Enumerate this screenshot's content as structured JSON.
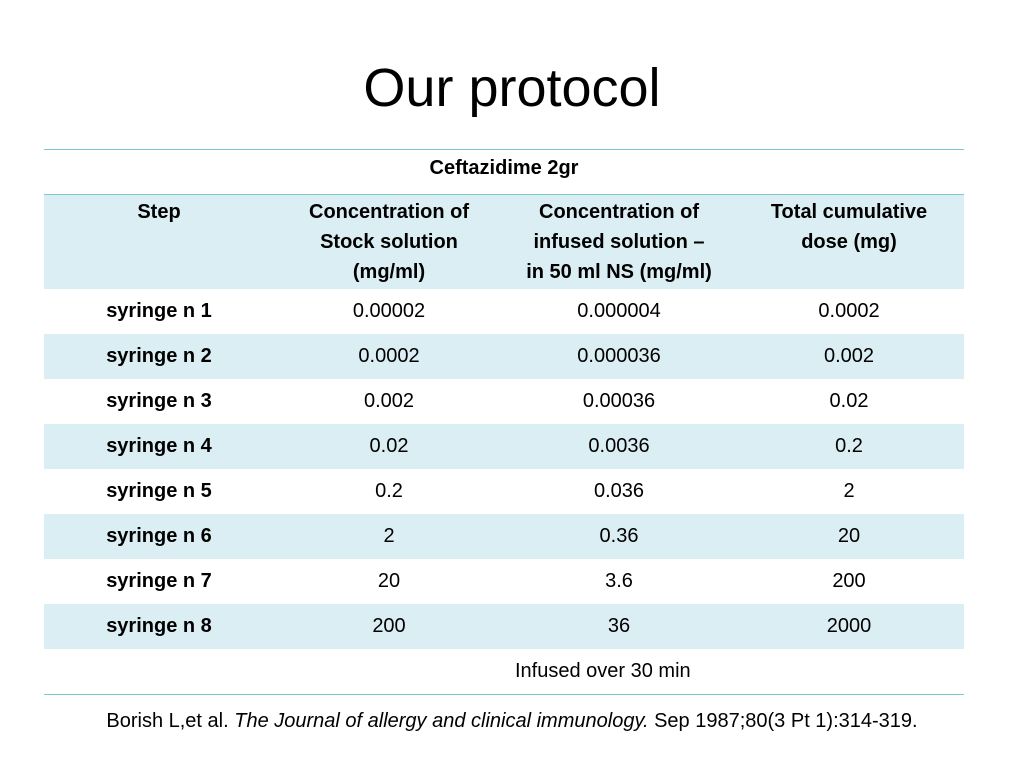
{
  "slide": {
    "title": "Our protocol"
  },
  "table": {
    "caption": "Ceftazidime 2gr",
    "headers": [
      "Step",
      "Concentration of Stock solution (mg/ml)",
      "Concentration of infused solution – in 50 ml NS (mg/ml)",
      "Total cumulative dose (mg)"
    ],
    "header_lines": [
      [
        "Step"
      ],
      [
        "Concentration of",
        "Stock solution",
        "(mg/ml)"
      ],
      [
        "Concentration of",
        "infused solution –",
        "in 50 ml NS (mg/ml)"
      ],
      [
        "Total cumulative",
        "dose (mg)"
      ]
    ],
    "rows": [
      [
        "syringe n 1",
        "0.00002",
        "0.000004",
        "0.0002"
      ],
      [
        "syringe n 2",
        "0.0002",
        "0.000036",
        "0.002"
      ],
      [
        "syringe n 3",
        "0.002",
        "0.00036",
        "0.02"
      ],
      [
        "syringe n 4",
        "0.02",
        "0.0036",
        "0.2"
      ],
      [
        "syringe n 5",
        "0.2",
        "0.036",
        "2"
      ],
      [
        "syringe n 6",
        "2",
        "0.36",
        "20"
      ],
      [
        "syringe n 7",
        "20",
        "3.6",
        "200"
      ],
      [
        "syringe n 8",
        "200",
        "36",
        "2000"
      ]
    ],
    "footer": "Infused over 30 min"
  },
  "citation": {
    "authors": "Borish L,et al.",
    "journal": "The Journal of allergy and clinical immunology.",
    "details": "Sep 1987;80(3 Pt 1):314-319."
  },
  "colors": {
    "table_rule": "#7fc7cf",
    "row_shade": "#dbeef3"
  }
}
